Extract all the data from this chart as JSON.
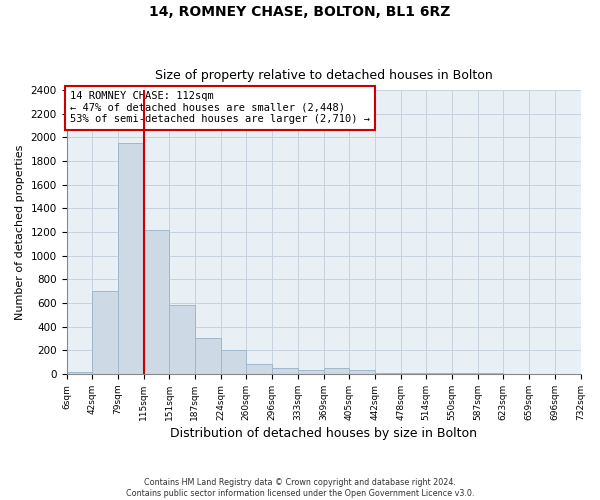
{
  "title": "14, ROMNEY CHASE, BOLTON, BL1 6RZ",
  "subtitle": "Size of property relative to detached houses in Bolton",
  "xlabel": "Distribution of detached houses by size in Bolton",
  "ylabel": "Number of detached properties",
  "bin_edges": [
    6,
    42,
    79,
    115,
    151,
    187,
    224,
    260,
    296,
    333,
    369,
    405,
    442,
    478,
    514,
    550,
    587,
    623,
    659,
    696,
    732
  ],
  "bar_heights": [
    20,
    700,
    1950,
    1220,
    580,
    300,
    200,
    80,
    50,
    30,
    50,
    30,
    10,
    10,
    10,
    5,
    5,
    0,
    0,
    0
  ],
  "bar_color": "#cdd9e5",
  "bar_edge_color": "#a0b8cc",
  "plot_bg_color": "#e8eff5",
  "property_line_x": 115,
  "property_line_color": "#cc0000",
  "ylim": [
    0,
    2400
  ],
  "yticks": [
    0,
    200,
    400,
    600,
    800,
    1000,
    1200,
    1400,
    1600,
    1800,
    2000,
    2200,
    2400
  ],
  "tick_labels": [
    "6sqm",
    "42sqm",
    "79sqm",
    "115sqm",
    "151sqm",
    "187sqm",
    "224sqm",
    "260sqm",
    "296sqm",
    "333sqm",
    "369sqm",
    "405sqm",
    "442sqm",
    "478sqm",
    "514sqm",
    "550sqm",
    "587sqm",
    "623sqm",
    "659sqm",
    "696sqm",
    "732sqm"
  ],
  "annotation_text": "14 ROMNEY CHASE: 112sqm\n← 47% of detached houses are smaller (2,448)\n53% of semi-detached houses are larger (2,710) →",
  "footer_line1": "Contains HM Land Registry data © Crown copyright and database right 2024.",
  "footer_line2": "Contains public sector information licensed under the Open Government Licence v3.0.",
  "background_color": "#ffffff",
  "grid_color": "#c5d2de"
}
